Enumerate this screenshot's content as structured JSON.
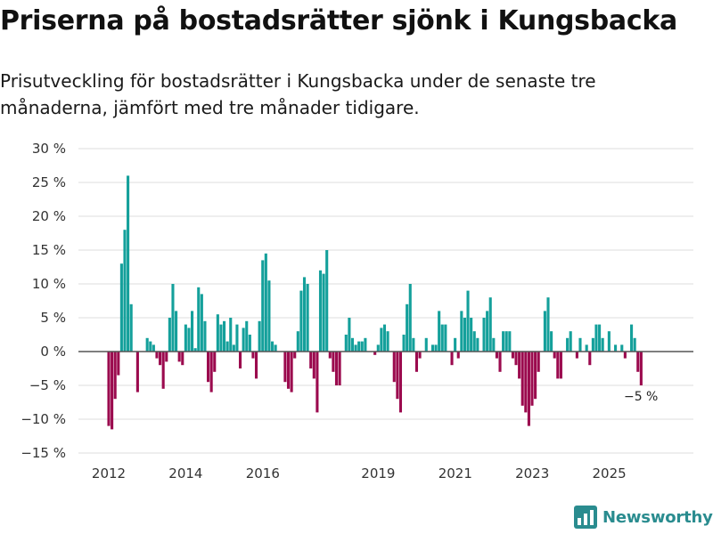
{
  "title": "Priserna på bostadsrätter sjönk i Kungsbacka",
  "subtitle": "Prisutveckling för bostadsrätter i Kungsbacka under de senaste tre månaderna, jämfört med tre månader tidigare.",
  "brand": {
    "name": "Newsworthy",
    "icon": "newsworthy-logo-icon"
  },
  "colors": {
    "positive": "#14a09b",
    "negative": "#9b0a4e",
    "grid": "#dddddd",
    "zero": "#555555",
    "brand": "#2a8c8f"
  },
  "chart_data": {
    "type": "bar",
    "title": "Priserna på bostadsrätter sjönk i Kungsbacka",
    "xlabel": "",
    "ylabel": "",
    "ylim": [
      -15,
      30
    ],
    "yticks": [
      30,
      25,
      20,
      15,
      10,
      5,
      0,
      -5,
      -10,
      -15
    ],
    "ytick_labels": [
      "30 %",
      "25 %",
      "20 %",
      "15 %",
      "10 %",
      "5 %",
      "0 %",
      "−5 %",
      "−10 %",
      "−15 %"
    ],
    "xtick_labels": [
      "2012",
      "2014",
      "2016",
      "2019",
      "2021",
      "2023",
      "2025"
    ],
    "xtick_positions": [
      2012,
      2014,
      2016,
      2019,
      2021,
      2023,
      2025
    ],
    "x_start": 2012.0,
    "step": 0.0833,
    "grid": true,
    "last_label": "−5 %",
    "values": [
      -11,
      -11.5,
      -7,
      -3.5,
      13,
      18,
      26,
      7,
      0,
      -6,
      0,
      0,
      2,
      1.5,
      1,
      -1,
      -2,
      -5.5,
      -1.5,
      5,
      10,
      6,
      -1.5,
      -2,
      4,
      3.5,
      6,
      0.5,
      9.5,
      8.5,
      4.5,
      -4.5,
      -6,
      -3,
      5.5,
      4,
      4.5,
      1.5,
      5,
      1,
      4,
      -2.5,
      3.5,
      4.5,
      2.5,
      -1,
      -4,
      4.5,
      13.5,
      14.5,
      10.5,
      1.5,
      1,
      0,
      0,
      -4.5,
      -5.5,
      -6,
      -1,
      3,
      9,
      11,
      10,
      -2.5,
      -4,
      -9,
      12,
      11.5,
      15,
      -1,
      -3,
      -5,
      -5,
      0,
      2.5,
      5,
      2,
      1,
      1.5,
      1.5,
      2,
      0,
      0,
      -0.5,
      1,
      3.5,
      4,
      3,
      0,
      -4.5,
      -7,
      -9,
      2.5,
      7,
      10,
      2,
      -3,
      -1,
      0,
      2,
      0,
      1,
      1,
      6,
      4,
      4,
      0,
      -2,
      2,
      -1,
      6,
      5,
      9,
      5,
      3,
      2,
      0,
      5,
      6,
      8,
      2,
      -1,
      -3,
      3,
      3,
      3,
      -1,
      -2,
      -4,
      -8,
      -9,
      -11,
      -8,
      -7,
      -3,
      0,
      6,
      8,
      3,
      -1,
      -4,
      -4,
      0,
      2,
      3,
      0,
      -1,
      2,
      0,
      1,
      -2,
      2,
      4,
      4,
      2,
      0,
      3,
      0,
      1,
      0,
      1,
      -1,
      0,
      4,
      2,
      -3,
      -5
    ]
  }
}
